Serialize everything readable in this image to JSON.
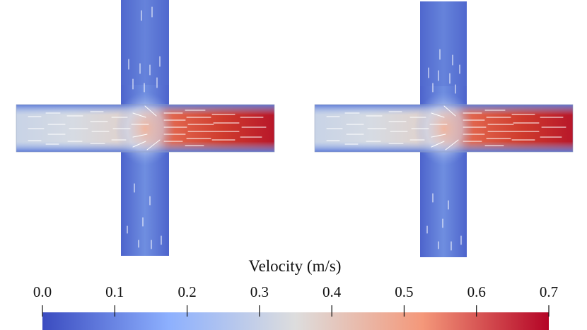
{
  "colorbar": {
    "title": "Velocity (m/s)",
    "ticks": [
      "0.0",
      "0.1",
      "0.2",
      "0.3",
      "0.4",
      "0.5",
      "0.6",
      "0.7"
    ],
    "min": 0.0,
    "max": 0.7,
    "colors": {
      "low": "#3b4cc0",
      "lowmid": "#8db0fe",
      "mid": "#dddddd",
      "highmid": "#f4987a",
      "high": "#b40426"
    }
  },
  "panels": [
    {
      "id": "left",
      "inlet_velocity": 0.3,
      "outlet_velocity": 0.7,
      "branch_velocity": 0.05
    },
    {
      "id": "right",
      "inlet_velocity": 0.3,
      "outlet_velocity": 0.7,
      "branch_velocity": 0.05
    }
  ]
}
